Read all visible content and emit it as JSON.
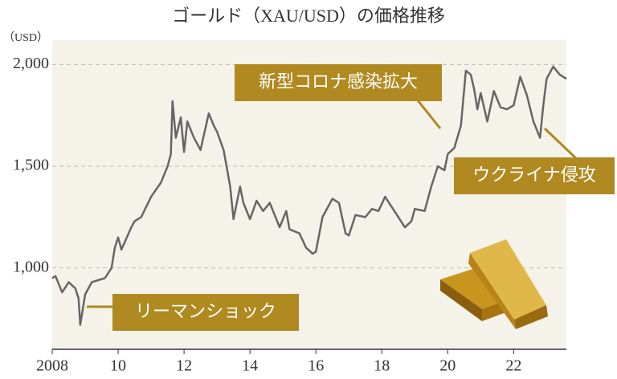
{
  "chart_data": {
    "type": "line",
    "title": "ゴールド（XAU/USD）の価格推移",
    "y_label": "（USD）",
    "annotations": [
      "新型コロナ感染拡大",
      "ウクライナ侵攻",
      "リーマンショック"
    ],
    "x": [
      2008.0,
      2008.1,
      2008.3,
      2008.5,
      2008.7,
      2008.8,
      2008.85,
      2009.0,
      2009.2,
      2009.4,
      2009.6,
      2009.8,
      2009.9,
      2010.0,
      2010.1,
      2010.4,
      2010.5,
      2010.7,
      2011.0,
      2011.3,
      2011.5,
      2011.6,
      2011.65,
      2011.75,
      2011.9,
      2012.0,
      2012.1,
      2012.3,
      2012.5,
      2012.75,
      2012.9,
      2013.0,
      2013.2,
      2013.4,
      2013.5,
      2013.7,
      2013.8,
      2014.0,
      2014.2,
      2014.4,
      2014.6,
      2014.9,
      2015.1,
      2015.2,
      2015.5,
      2015.7,
      2015.9,
      2016.0,
      2016.2,
      2016.5,
      2016.7,
      2016.9,
      2017.0,
      2017.2,
      2017.5,
      2017.7,
      2017.9,
      2018.1,
      2018.3,
      2018.5,
      2018.7,
      2018.9,
      2019.0,
      2019.3,
      2019.5,
      2019.7,
      2019.9,
      2020.0,
      2020.2,
      2020.4,
      2020.55,
      2020.7,
      2020.8,
      2020.9,
      2021.0,
      2021.2,
      2021.4,
      2021.6,
      2021.8,
      2022.0,
      2022.2,
      2022.4,
      2022.6,
      2022.8,
      2022.9,
      2023.0,
      2023.2,
      2023.4,
      2023.6
    ],
    "series": [
      {
        "name": "XAU/USD",
        "color": "#666666",
        "values": [
          950,
          960,
          880,
          930,
          900,
          850,
          720,
          870,
          930,
          940,
          950,
          1000,
          1100,
          1150,
          1090,
          1200,
          1230,
          1250,
          1350,
          1420,
          1500,
          1560,
          1820,
          1640,
          1740,
          1570,
          1720,
          1640,
          1580,
          1760,
          1700,
          1670,
          1580,
          1400,
          1240,
          1400,
          1320,
          1240,
          1330,
          1280,
          1320,
          1200,
          1280,
          1190,
          1170,
          1100,
          1070,
          1080,
          1250,
          1340,
          1320,
          1170,
          1160,
          1260,
          1250,
          1290,
          1280,
          1350,
          1300,
          1250,
          1200,
          1230,
          1290,
          1280,
          1400,
          1500,
          1480,
          1560,
          1590,
          1700,
          1970,
          1950,
          1880,
          1780,
          1860,
          1720,
          1870,
          1790,
          1780,
          1800,
          1940,
          1850,
          1720,
          1640,
          1800,
          1930,
          1990,
          1950,
          1930
        ]
      }
    ],
    "xlim": [
      2008,
      2023.6
    ],
    "xticks": [
      {
        "value": 2008,
        "label": "2008"
      },
      {
        "value": 2010,
        "label": "10"
      },
      {
        "value": 2012,
        "label": "12"
      },
      {
        "value": 2014,
        "label": "14"
      },
      {
        "value": 2016,
        "label": "16"
      },
      {
        "value": 2018,
        "label": "18"
      },
      {
        "value": 2020,
        "label": "20"
      },
      {
        "value": 2022,
        "label": "22"
      }
    ],
    "ylim": [
      600,
      2120
    ],
    "yticks": [
      {
        "value": 1000,
        "label": "1,000"
      },
      {
        "value": 1500,
        "label": "1,500"
      },
      {
        "value": 2000,
        "label": "2,000"
      }
    ],
    "grid": true
  }
}
